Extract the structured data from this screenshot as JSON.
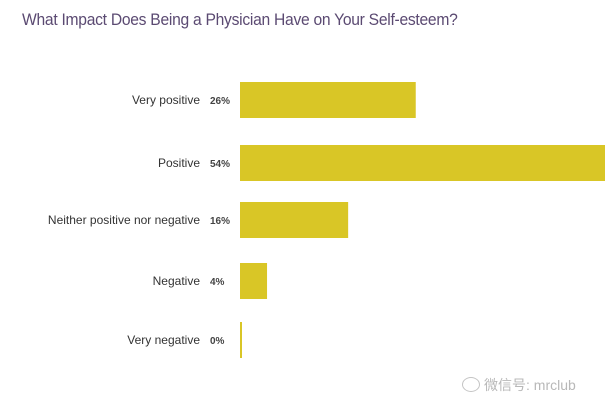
{
  "chart_data": {
    "type": "bar",
    "orientation": "horizontal",
    "title": "What Impact Does Being a Physician Have on Your Self-esteem?",
    "categories": [
      "Very positive",
      "Positive",
      "Neither positive nor negative",
      "Negative",
      "Very negative"
    ],
    "values": [
      26,
      54,
      16,
      4,
      0
    ],
    "value_labels": [
      "26%",
      "54%",
      "16%",
      "4%",
      "0%"
    ],
    "xlabel": "",
    "ylabel": "",
    "xlim": [
      0,
      54
    ],
    "grid": false,
    "bar_color": "#d9c626"
  },
  "watermark": "微信号: mrclub"
}
